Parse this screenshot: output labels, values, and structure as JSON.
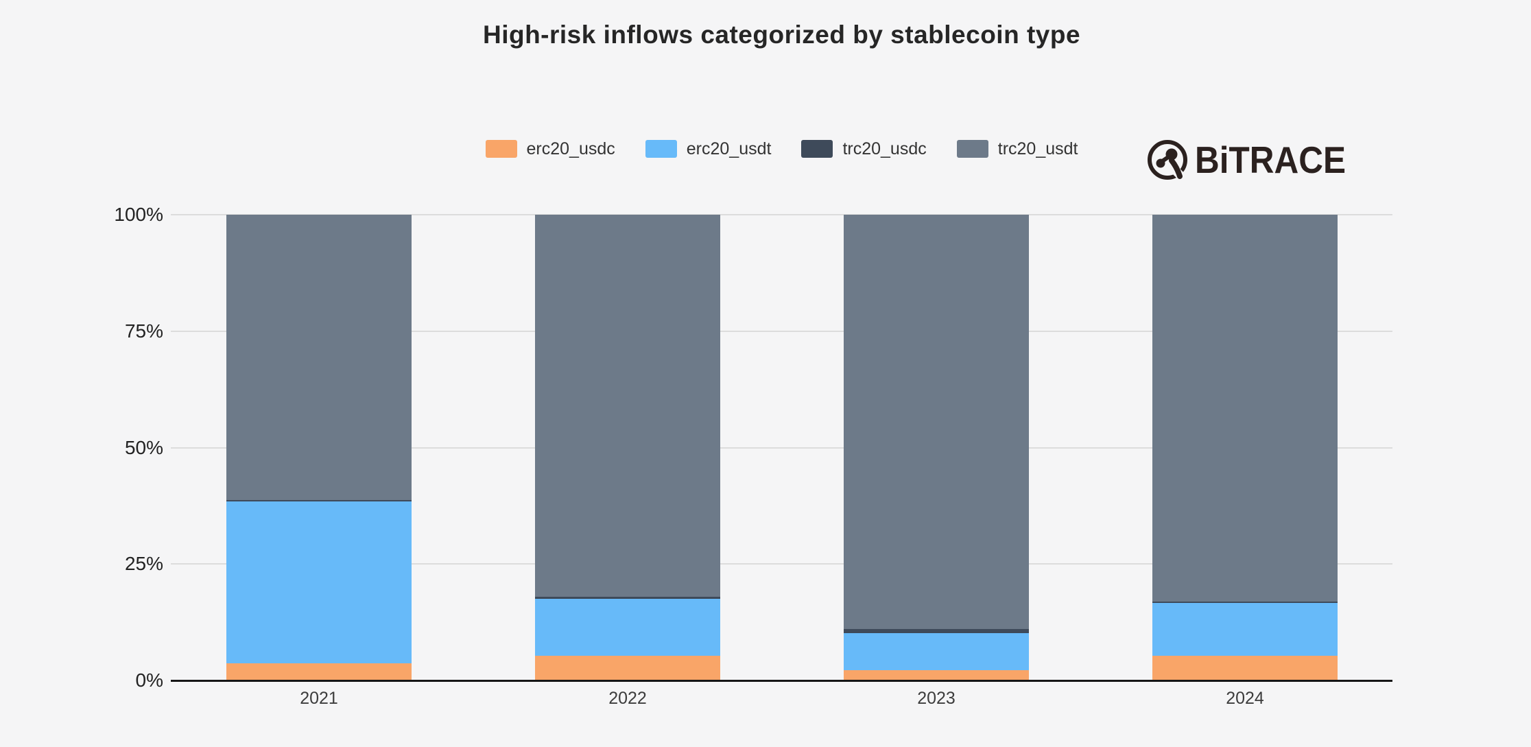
{
  "title": "High-risk inflows categorized by stablecoin type",
  "brand": {
    "name": "BiTRACE",
    "icon": "bitrace-logo-icon",
    "color": "#2b211f"
  },
  "colors": {
    "background": "#f5f5f6",
    "gridline": "#dcdcdc",
    "axis_line": "#161616",
    "title_text": "#262626",
    "tick_text": "#222222",
    "legend_text": "#333333"
  },
  "chart_data": {
    "type": "bar",
    "stacked": true,
    "units": "percent",
    "title": "High-risk inflows categorized by stablecoin type",
    "categories": [
      "2021",
      "2022",
      "2023",
      "2024"
    ],
    "series": [
      {
        "name": "erc20_usdc",
        "color": "#f9a568",
        "values": [
          3.7,
          5.3,
          2.2,
          5.3
        ]
      },
      {
        "name": "erc20_usdt",
        "color": "#67baf9",
        "values": [
          34.7,
          12.2,
          8.0,
          11.3
        ]
      },
      {
        "name": "trc20_usdc",
        "color": "#3e4a5a",
        "values": [
          0.4,
          0.4,
          0.9,
          0.4
        ]
      },
      {
        "name": "trc20_usdt",
        "color": "#6d7a89",
        "values": [
          61.2,
          82.1,
          88.9,
          83.0
        ]
      }
    ],
    "y_ticks": [
      "0%",
      "25%",
      "50%",
      "75%",
      "100%"
    ],
    "ylim": [
      0,
      100
    ],
    "grid": true,
    "legend_position": "top-center",
    "legend_entries": [
      "erc20_usdc",
      "erc20_usdt",
      "trc20_usdc",
      "trc20_usdt"
    ]
  }
}
